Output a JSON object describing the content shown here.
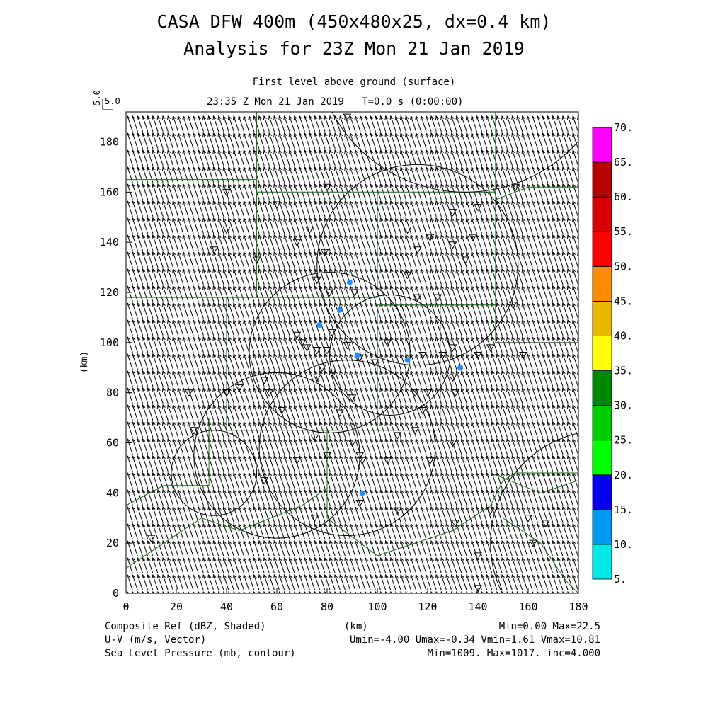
{
  "header": {
    "title_line1": "CASA DFW 400m (450x480x25, dx=0.4 km)",
    "title_line2": "Analysis for 23Z Mon 21 Jan 2019",
    "level_label": "First level above ground (surface)",
    "time_label": "23:35 Z Mon 21 Jan 2019   T=0.0 s (0:00:00)"
  },
  "vector_scale": {
    "label_vertical": "5.0",
    "label_horizontal": "5.0"
  },
  "footer": {
    "field1": "Composite Ref (dBZ, Shaded)",
    "field2": "U-V (m/s, Vector)",
    "field3": "Sea Level Pressure (mb, contour)",
    "x_unit": "(km)",
    "stats1": "Min=0.00 Max=22.5",
    "stats2": "Umin=-4.00 Umax=-0.34 Vmin=1.61 Vmax=10.81",
    "stats3": "Min=1009. Max=1017. inc=4.000"
  },
  "colors": {
    "county_lines": "#1a6b1a",
    "reflectivity_dots": "#1e90ff"
  },
  "chart_data": {
    "type": "heatmap",
    "xlabel": "",
    "ylabel": "(km)",
    "xlim": [
      0,
      180
    ],
    "ylim": [
      0,
      192
    ],
    "x_ticks": [
      0,
      20,
      40,
      60,
      80,
      100,
      120,
      140,
      160,
      180
    ],
    "y_ticks": [
      0,
      20,
      40,
      60,
      80,
      100,
      120,
      140,
      160,
      180
    ],
    "colorbar": {
      "labels": [
        "5.",
        "10.",
        "15.",
        "20.",
        "25.",
        "30.",
        "35.",
        "40.",
        "45.",
        "50.",
        "55.",
        "60.",
        "65.",
        "70."
      ],
      "colors": [
        "#00e8e8",
        "#0098f0",
        "#0000f0",
        "#00ff00",
        "#00cc00",
        "#008800",
        "#ffff00",
        "#e6b800",
        "#ff8c00",
        "#ff0000",
        "#d80000",
        "#b80000",
        "#ff00ff"
      ]
    },
    "wind_vector": {
      "u": -2.0,
      "v": 6.0
    },
    "reflectivity_echoes": [
      {
        "x": 89,
        "y": 124
      },
      {
        "x": 85,
        "y": 113
      },
      {
        "x": 77,
        "y": 107
      },
      {
        "x": 92,
        "y": 95
      },
      {
        "x": 112,
        "y": 93
      },
      {
        "x": 133,
        "y": 90
      },
      {
        "x": 94,
        "y": 40
      }
    ],
    "pressure_circles": [
      {
        "cx": 116,
        "cy": 131,
        "r": 40
      },
      {
        "cx": 81,
        "cy": 96,
        "r": 32
      },
      {
        "cx": 105,
        "cy": 95,
        "r": 24
      },
      {
        "cx": 88,
        "cy": 58,
        "r": 35
      },
      {
        "cx": 60,
        "cy": 55,
        "r": 33
      },
      {
        "cx": 35,
        "cy": 48,
        "r": 17
      },
      {
        "cx": 135,
        "cy": 220,
        "r": 60
      },
      {
        "cx": 190,
        "cy": 20,
        "r": 45
      }
    ],
    "county_lines": [
      [
        [
          0,
          165
        ],
        [
          52,
          165
        ],
        [
          52,
          192
        ]
      ],
      [
        [
          0,
          118
        ],
        [
          100,
          118
        ]
      ],
      [
        [
          52,
          165
        ],
        [
          52,
          118
        ]
      ],
      [
        [
          52,
          160
        ],
        [
          100,
          160
        ],
        [
          100,
          118
        ]
      ],
      [
        [
          100,
          160
        ],
        [
          147,
          160
        ],
        [
          147,
          192
        ]
      ],
      [
        [
          147,
          157
        ],
        [
          160,
          162
        ],
        [
          180,
          162
        ]
      ],
      [
        [
          147,
          160
        ],
        [
          147,
          115
        ]
      ],
      [
        [
          100,
          115
        ],
        [
          147,
          115
        ],
        [
          147,
          100
        ],
        [
          180,
          100
        ],
        [
          180,
          40
        ]
      ],
      [
        [
          100,
          115
        ],
        [
          100,
          65
        ]
      ],
      [
        [
          40,
          118
        ],
        [
          40,
          65
        ],
        [
          125,
          65
        ],
        [
          125,
          115
        ]
      ],
      [
        [
          0,
          68
        ],
        [
          40,
          68
        ]
      ],
      [
        [
          15,
          43
        ],
        [
          33,
          43
        ],
        [
          33,
          70
        ]
      ],
      [
        [
          0,
          35
        ],
        [
          15,
          43
        ]
      ],
      [
        [
          0,
          10
        ],
        [
          30,
          30
        ],
        [
          45,
          25
        ],
        [
          70,
          35
        ],
        [
          80,
          42
        ]
      ],
      [
        [
          80,
          65
        ],
        [
          80,
          30
        ],
        [
          100,
          15
        ],
        [
          130,
          25
        ],
        [
          145,
          35
        ],
        [
          150,
          45
        ],
        [
          155,
          48
        ],
        [
          180,
          48
        ]
      ],
      [
        [
          145,
          48
        ],
        [
          165,
          40
        ],
        [
          180,
          45
        ]
      ],
      [
        [
          150,
          30
        ],
        [
          165,
          20
        ],
        [
          175,
          5
        ],
        [
          180,
          0
        ]
      ]
    ],
    "triangles": [
      [
        88,
        190
      ],
      [
        80,
        162
      ],
      [
        60,
        155
      ],
      [
        40,
        145
      ],
      [
        35,
        137
      ],
      [
        52,
        133
      ],
      [
        40,
        160
      ],
      [
        73,
        145
      ],
      [
        68,
        140
      ],
      [
        79,
        136
      ],
      [
        76,
        125
      ],
      [
        81,
        120
      ],
      [
        91,
        120
      ],
      [
        116,
        137
      ],
      [
        112,
        145
      ],
      [
        121,
        142
      ],
      [
        130,
        139
      ],
      [
        112,
        127
      ],
      [
        116,
        118
      ],
      [
        124,
        118
      ],
      [
        135,
        133
      ],
      [
        130,
        152
      ],
      [
        140,
        154
      ],
      [
        155,
        162
      ],
      [
        138,
        142
      ],
      [
        154,
        115
      ],
      [
        145,
        98
      ],
      [
        140,
        95
      ],
      [
        130,
        98
      ],
      [
        126,
        95
      ],
      [
        118,
        95
      ],
      [
        130,
        86
      ],
      [
        131,
        80
      ],
      [
        120,
        80
      ],
      [
        118,
        73
      ],
      [
        115,
        65
      ],
      [
        108,
        63
      ],
      [
        130,
        60
      ],
      [
        121,
        53
      ],
      [
        104,
        53
      ],
      [
        94,
        53
      ],
      [
        93,
        55
      ],
      [
        90,
        60
      ],
      [
        80,
        55
      ],
      [
        75,
        62
      ],
      [
        68,
        53
      ],
      [
        62,
        73
      ],
      [
        57,
        80
      ],
      [
        55,
        85
      ],
      [
        45,
        82
      ],
      [
        40,
        80
      ],
      [
        25,
        80
      ],
      [
        27,
        65
      ],
      [
        68,
        103
      ],
      [
        70,
        100
      ],
      [
        72,
        98
      ],
      [
        76,
        97
      ],
      [
        80,
        97
      ],
      [
        78,
        90
      ],
      [
        82,
        88
      ],
      [
        76,
        86
      ],
      [
        88,
        99
      ],
      [
        82,
        104
      ],
      [
        99,
        92
      ],
      [
        104,
        100
      ],
      [
        93,
        94
      ],
      [
        90,
        78
      ],
      [
        85,
        72
      ],
      [
        55,
        45
      ],
      [
        75,
        30
      ],
      [
        93,
        36
      ],
      [
        108,
        33
      ],
      [
        131,
        28
      ],
      [
        145,
        33
      ],
      [
        160,
        30
      ],
      [
        167,
        28
      ],
      [
        162,
        20
      ],
      [
        140,
        15
      ],
      [
        140,
        2
      ],
      [
        10,
        22
      ],
      [
        158,
        95
      ],
      [
        115,
        80
      ]
    ]
  }
}
